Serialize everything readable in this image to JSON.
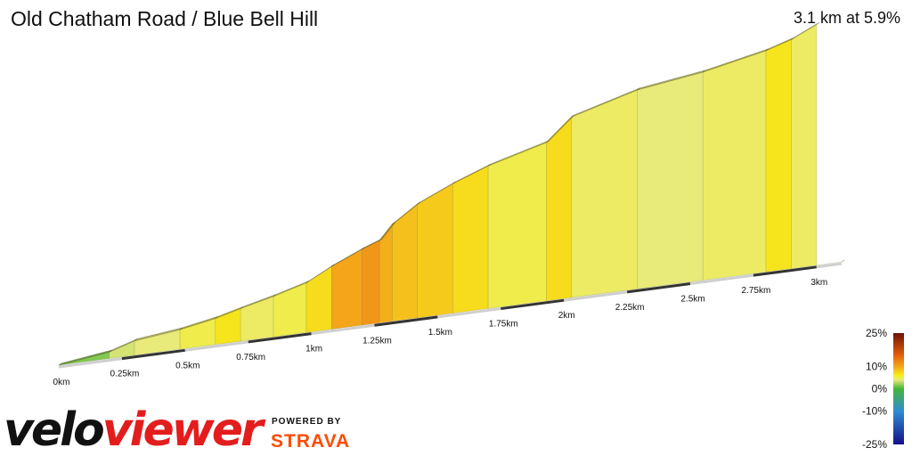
{
  "title": "Old Chatham Road / Blue Bell Hill",
  "summary": "3.1 km at 5.9%",
  "brand": {
    "logo_part1": "velo",
    "logo_part2": "viewer",
    "powered_by": "POWERED BY",
    "strava": "STRAVA",
    "colors": {
      "veloviewer_red": "#e31d1d",
      "strava_orange": "#fc4c02"
    }
  },
  "chart_data": {
    "type": "area",
    "title": "Old Chatham Road / Blue Bell Hill",
    "xlabel": "",
    "ylabel": "",
    "x_unit": "km",
    "x_ticks": [
      {
        "value": 0,
        "label": "0km"
      },
      {
        "value": 0.25,
        "label": "0.25km"
      },
      {
        "value": 0.5,
        "label": "0.5km"
      },
      {
        "value": 0.75,
        "label": "0.75km"
      },
      {
        "value": 1,
        "label": "1km"
      },
      {
        "value": 1.25,
        "label": "1.25km"
      },
      {
        "value": 1.5,
        "label": "1.5km"
      },
      {
        "value": 1.75,
        "label": "1.75km"
      },
      {
        "value": 2,
        "label": "2km"
      },
      {
        "value": 2.25,
        "label": "2.25km"
      },
      {
        "value": 2.5,
        "label": "2.5km"
      },
      {
        "value": 2.75,
        "label": "2.75km"
      },
      {
        "value": 3,
        "label": "3km"
      }
    ],
    "xlim": [
      0,
      3.1
    ],
    "elevation_gain_m": [
      0,
      5,
      11,
      15,
      20,
      25,
      31,
      38,
      48,
      58,
      63,
      74,
      87,
      99,
      109,
      121,
      138,
      152,
      159,
      169,
      175,
      184
    ],
    "segments": [
      {
        "from": 0.0,
        "to": 0.2,
        "gradient": 1.5
      },
      {
        "from": 0.2,
        "to": 0.3,
        "gradient": 3.5
      },
      {
        "from": 0.3,
        "to": 0.48,
        "gradient": 4.0
      },
      {
        "from": 0.48,
        "to": 0.62,
        "gradient": 5.0
      },
      {
        "from": 0.62,
        "to": 0.72,
        "gradient": 6.5
      },
      {
        "from": 0.72,
        "to": 0.85,
        "gradient": 4.5
      },
      {
        "from": 0.85,
        "to": 0.98,
        "gradient": 5.0
      },
      {
        "from": 0.98,
        "to": 1.08,
        "gradient": 7.0
      },
      {
        "from": 1.08,
        "to": 1.2,
        "gradient": 10.0
      },
      {
        "from": 1.2,
        "to": 1.27,
        "gradient": 11.0
      },
      {
        "from": 1.27,
        "to": 1.32,
        "gradient": 9.5
      },
      {
        "from": 1.32,
        "to": 1.42,
        "gradient": 8.5
      },
      {
        "from": 1.42,
        "to": 1.56,
        "gradient": 8.0
      },
      {
        "from": 1.56,
        "to": 1.7,
        "gradient": 7.0
      },
      {
        "from": 1.7,
        "to": 1.93,
        "gradient": 5.0
      },
      {
        "from": 1.93,
        "to": 2.03,
        "gradient": 7.0
      },
      {
        "from": 2.03,
        "to": 2.29,
        "gradient": 4.5
      },
      {
        "from": 2.29,
        "to": 2.55,
        "gradient": 4.0
      },
      {
        "from": 2.55,
        "to": 2.8,
        "gradient": 4.5
      },
      {
        "from": 2.8,
        "to": 2.9,
        "gradient": 6.5
      },
      {
        "from": 2.9,
        "to": 3.0,
        "gradient": 4.5
      },
      {
        "from": 3.0,
        "to": 3.1,
        "gradient": 3.5
      }
    ],
    "color_scale": {
      "stops": [
        {
          "value": -25,
          "color": "#15108a"
        },
        {
          "value": -10,
          "color": "#2f8ed1"
        },
        {
          "value": 0,
          "color": "#45b53a"
        },
        {
          "value": 4,
          "color": "#e8ea7a"
        },
        {
          "value": 6,
          "color": "#f6ee1c"
        },
        {
          "value": 10,
          "color": "#f4a51a"
        },
        {
          "value": 15,
          "color": "#e4600a"
        },
        {
          "value": 25,
          "color": "#6e1208"
        }
      ],
      "labels": [
        {
          "value": 25,
          "label": "25%"
        },
        {
          "value": 10,
          "label": "10%"
        },
        {
          "value": 0,
          "label": "0%"
        },
        {
          "value": -10,
          "label": "-10%"
        },
        {
          "value": -25,
          "label": "-25%"
        }
      ]
    }
  }
}
